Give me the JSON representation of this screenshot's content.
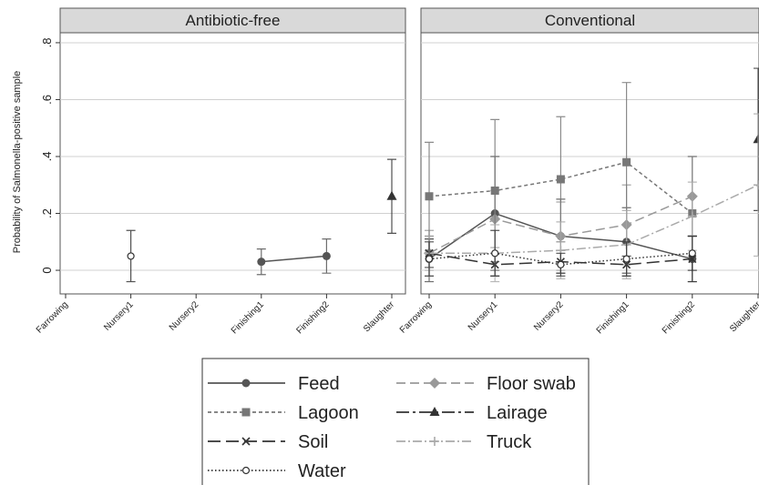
{
  "chart_data": {
    "type": "line",
    "ylabel": "Probability of Salmonella-positive sample",
    "panels": [
      "Antibiotic-free",
      "Conventional"
    ],
    "categories": [
      "Farrowing",
      "Nursery1",
      "Nursery2",
      "Finishing1",
      "Finishing2",
      "Slaughter"
    ],
    "ylim": [
      -0.083,
      0.835
    ],
    "yticks": [
      0,
      {
        "value": 0.2,
        "label": ".2"
      },
      {
        "value": 0.4,
        "label": ".4"
      },
      {
        "value": 0.6,
        "label": ".6"
      },
      {
        "value": 0.8,
        "label": ".8"
      }
    ],
    "grid": true,
    "series": [
      {
        "name": "Feed",
        "color": "#555555",
        "marker": "circle",
        "dash": "none",
        "values": [
          [
            null,
            null,
            null,
            0.03,
            0.05,
            null
          ],
          [
            0.04,
            0.2,
            0.12,
            0.1,
            0.04,
            null
          ]
        ],
        "errors": [
          [
            null,
            null,
            null,
            0.045,
            0.06,
            null
          ],
          [
            0.08,
            0.2,
            0.13,
            0.12,
            0.08,
            null
          ]
        ]
      },
      {
        "name": "Floor swab",
        "color": "#999999",
        "marker": "diamond",
        "dash": "10,5",
        "values": [
          [
            null,
            null,
            null,
            null,
            null,
            null
          ],
          [
            0.06,
            0.18,
            0.12,
            0.16,
            0.26,
            null
          ]
        ],
        "errors": [
          [
            null,
            null,
            null,
            null,
            null,
            null
          ],
          [
            0.08,
            0.1,
            0.12,
            0.14,
            0.14,
            null
          ]
        ]
      },
      {
        "name": "Lagoon",
        "color": "#777777",
        "marker": "square",
        "dash": "4,3",
        "values": [
          [
            null,
            null,
            null,
            null,
            null,
            null
          ],
          [
            0.26,
            0.28,
            0.32,
            0.38,
            0.2,
            null
          ]
        ],
        "errors": [
          [
            null,
            null,
            null,
            null,
            null,
            null
          ],
          [
            0.19,
            0.25,
            0.22,
            0.28,
            0.2,
            null
          ]
        ]
      },
      {
        "name": "Lairage",
        "color": "#333333",
        "marker": "triangle",
        "dash": "14,4,3,4",
        "values": [
          [
            null,
            null,
            null,
            null,
            null,
            0.26
          ],
          [
            null,
            null,
            null,
            null,
            null,
            0.46
          ]
        ],
        "errors": [
          [
            null,
            null,
            null,
            null,
            null,
            0.13
          ],
          [
            null,
            null,
            null,
            null,
            null,
            0.25
          ]
        ]
      },
      {
        "name": "Soil",
        "color": "#333333",
        "marker": "x",
        "dash": "14,6",
        "values": [
          [
            null,
            null,
            null,
            null,
            null,
            null
          ],
          [
            0.06,
            0.02,
            0.03,
            0.02,
            0.04,
            null
          ]
        ],
        "errors": [
          [
            null,
            null,
            null,
            null,
            null,
            null
          ],
          [
            0.05,
            0.04,
            0.04,
            0.03,
            0.08,
            null
          ]
        ]
      },
      {
        "name": "Truck",
        "color": "#aaaaaa",
        "marker": "plus",
        "dash": "10,3,2,3",
        "values": [
          [
            null,
            null,
            null,
            null,
            null,
            null
          ],
          [
            0.06,
            0.06,
            0.07,
            0.09,
            0.19,
            0.3
          ]
        ],
        "errors": [
          [
            null,
            null,
            null,
            null,
            null,
            null
          ],
          [
            0.06,
            0.1,
            0.1,
            0.12,
            0.12,
            0.25
          ]
        ]
      },
      {
        "name": "Water",
        "color": "#333333",
        "marker": "ocircle",
        "dash": "1.5,2.5",
        "values": [
          [
            null,
            0.05,
            null,
            null,
            null,
            null
          ],
          [
            0.04,
            0.06,
            0.02,
            0.04,
            0.06,
            null
          ]
        ],
        "errors": [
          [
            null,
            0.09,
            null,
            null,
            null,
            null
          ],
          [
            0.06,
            0.08,
            0.04,
            0.06,
            0.06,
            null
          ]
        ]
      }
    ]
  }
}
